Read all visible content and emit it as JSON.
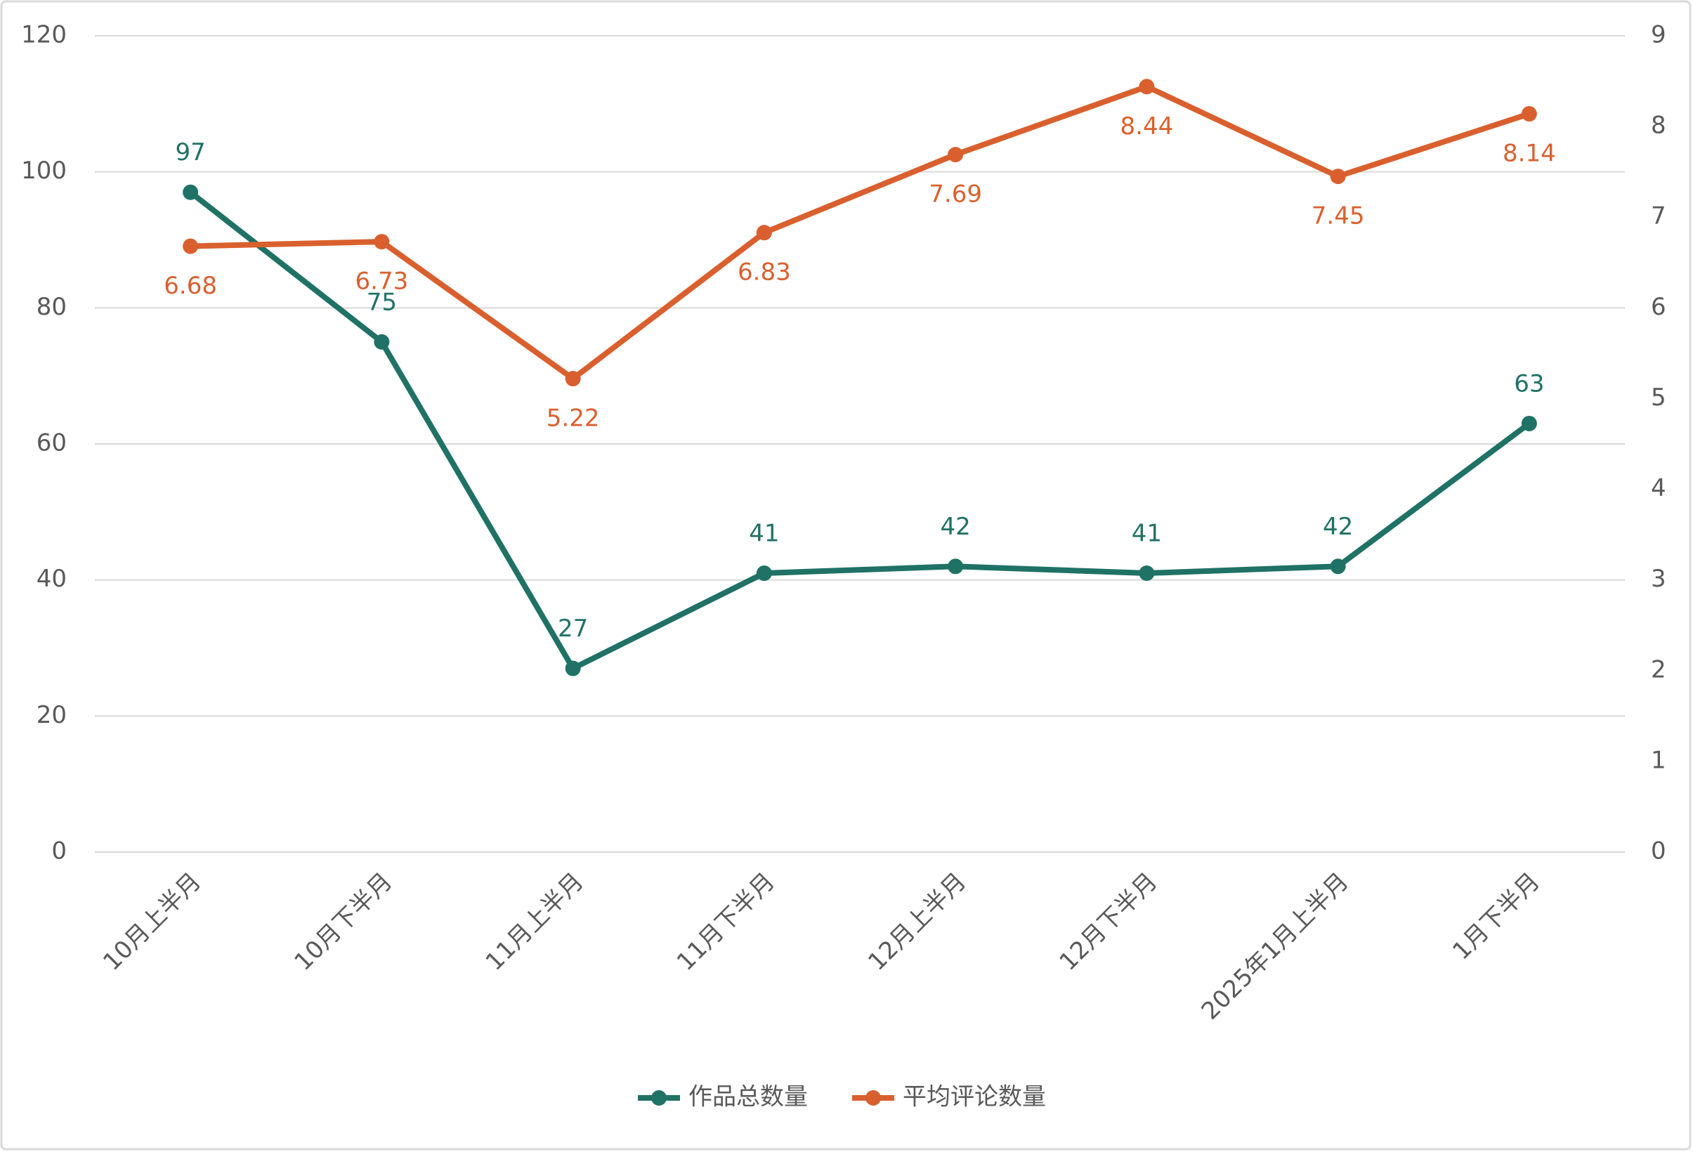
{
  "chart_data": {
    "type": "line",
    "categories": [
      "10月上半月",
      "10月下半月",
      "11月上半月",
      "11月下半月",
      "12月上半月",
      "12月下半月",
      "2025年1月上半月",
      "1月下半月"
    ],
    "series": [
      {
        "name": "作品总数量",
        "color": "#1f7265",
        "values": [
          97,
          75,
          27,
          41,
          42,
          41,
          42,
          63
        ]
      },
      {
        "name": "平均评论数量",
        "color": "#d9602e",
        "axis": "y2",
        "values": [
          6.68,
          6.73,
          5.22,
          6.83,
          7.69,
          8.44,
          7.45,
          8.14
        ]
      }
    ],
    "ylim": [
      0,
      120
    ],
    "yticks": [
      0,
      20,
      40,
      60,
      80,
      100,
      120
    ],
    "y2lim": [
      0,
      9
    ],
    "y2ticks": [
      0,
      1,
      2,
      3,
      4,
      5,
      6,
      7,
      8,
      9
    ],
    "grid": true,
    "legend": "bottom"
  }
}
